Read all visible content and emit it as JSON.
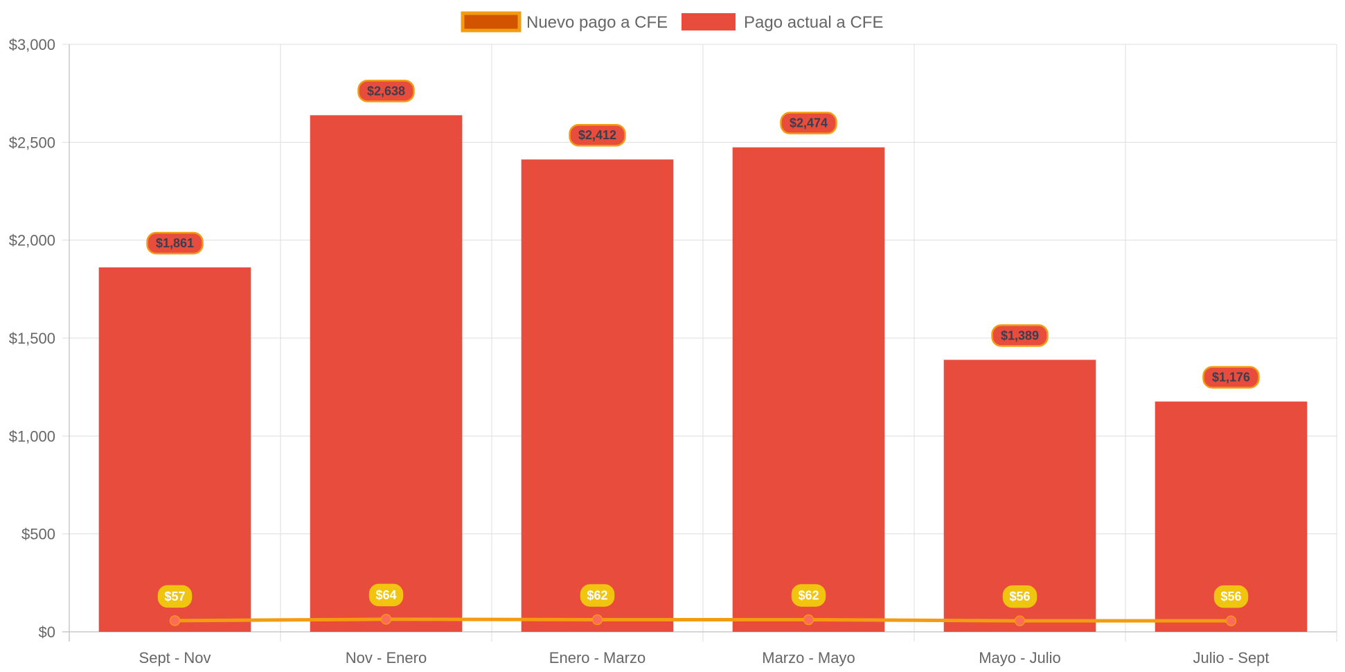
{
  "chart_data": {
    "type": "bar",
    "categories": [
      "Sept - Nov",
      "Nov - Enero",
      "Enero - Marzo",
      "Marzo - Mayo",
      "Mayo - Julio",
      "Julio - Sept"
    ],
    "series": [
      {
        "name": "Nuevo pago a CFE",
        "type": "line",
        "values": [
          57,
          64,
          62,
          62,
          56,
          56
        ],
        "labels": [
          "$57",
          "$64",
          "$62",
          "$62",
          "$56",
          "$56"
        ],
        "color": "#f39c12",
        "legend_fill": "#d35400",
        "point_color": "#ff6b5b",
        "label_bg": "#f1c40f",
        "label_text_color": "#ffffff"
      },
      {
        "name": "Pago actual a CFE",
        "type": "bar",
        "values": [
          1861,
          2638,
          2412,
          2474,
          1389,
          1176
        ],
        "labels": [
          "$1,861",
          "$2,638",
          "$2,412",
          "$2,474",
          "$1,389",
          "$1,176"
        ],
        "color": "#e74c3c",
        "label_bg": "#e74c3c",
        "label_border": "#f39c12",
        "label_text_color": "#3d3d4d"
      }
    ],
    "ylim": [
      0,
      3000
    ],
    "yticks": [
      0,
      500,
      1000,
      1500,
      2000,
      2500,
      3000
    ],
    "ytick_labels": [
      "$0",
      "$500",
      "$1,000",
      "$1,500",
      "$2,000",
      "$2,500",
      "$3,000"
    ],
    "grid": true,
    "legend_position": "top-center",
    "grid_color": "#dddddd",
    "axis_color": "#c8c8c8"
  }
}
